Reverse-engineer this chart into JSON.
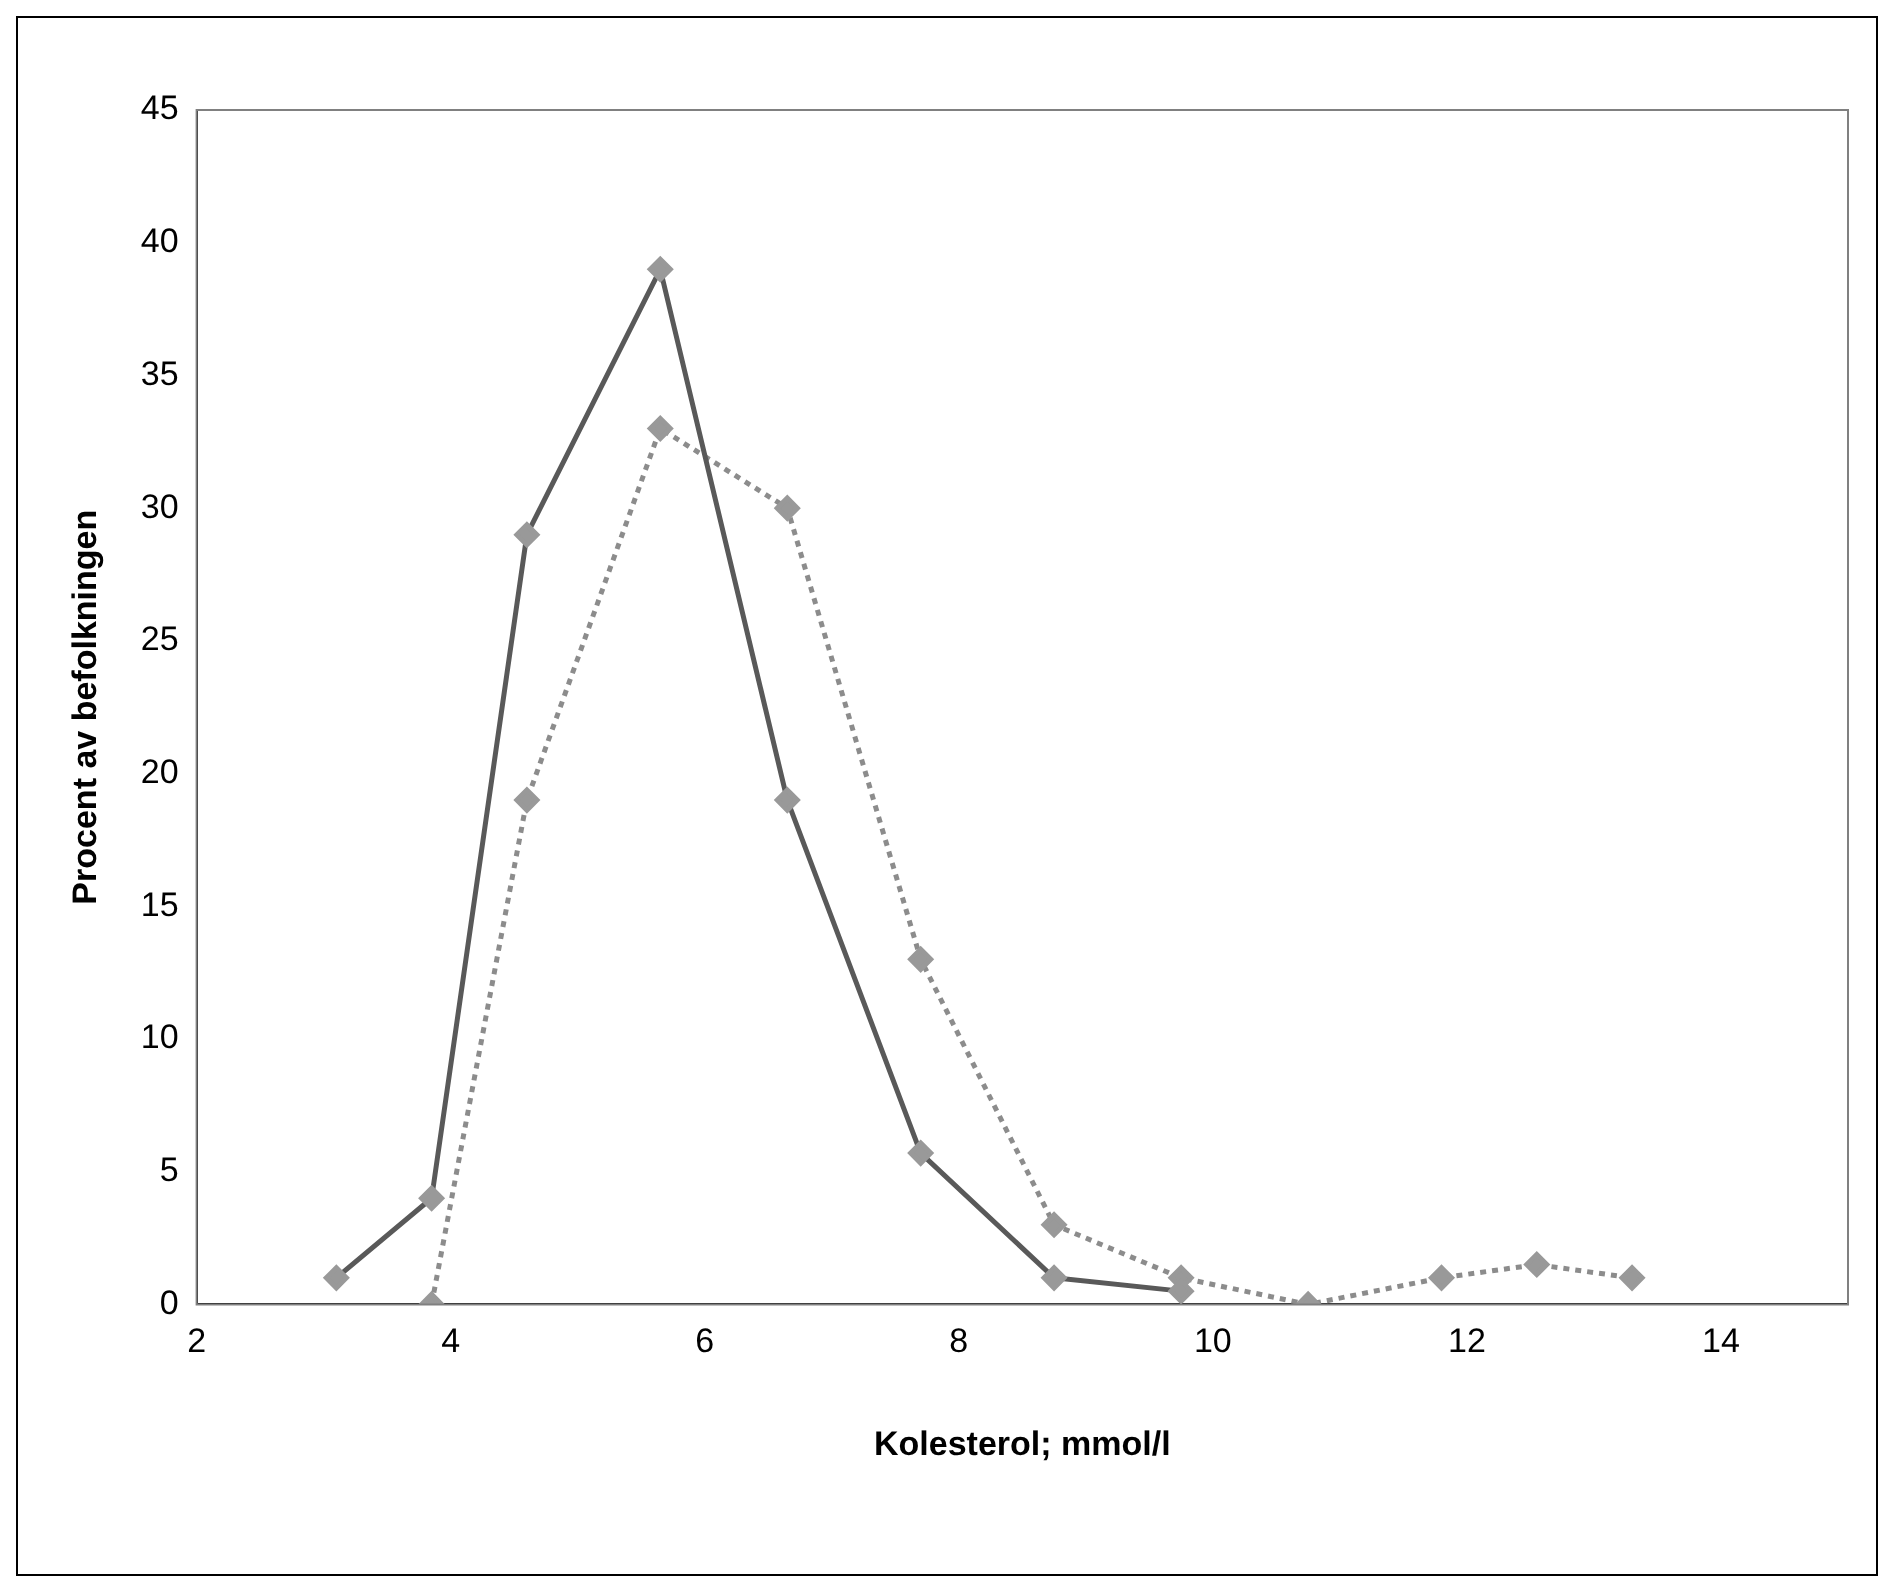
{
  "chart_data": {
    "type": "line",
    "xlabel": "Kolesterol; mmol/l",
    "ylabel": "Procent av befolkningen",
    "xlim": [
      2,
      15
    ],
    "xticks": [
      2,
      4,
      6,
      8,
      10,
      12,
      14
    ],
    "ylim": [
      0,
      45
    ],
    "yticks": [
      0,
      5,
      10,
      15,
      20,
      25,
      30,
      35,
      40,
      45
    ],
    "grid": false,
    "legend": false,
    "marker": "diamond",
    "series": [
      {
        "color": "#595959",
        "line_style": "solid",
        "x": [
          3.1,
          3.85,
          4.6,
          5.65,
          6.65,
          7.7,
          8.75,
          9.75
        ],
        "values": [
          1,
          4,
          29,
          39,
          19,
          5.7,
          1,
          0.5
        ]
      },
      {
        "color": "#8c8c8c",
        "line_style": "dotted",
        "x": [
          3.85,
          4.6,
          5.65,
          6.65,
          7.7,
          8.75,
          9.75,
          10.75,
          11.8,
          12.55,
          13.3
        ],
        "values": [
          0,
          19,
          33,
          30,
          13,
          3,
          1,
          0,
          1,
          1.5,
          1
        ]
      }
    ]
  }
}
